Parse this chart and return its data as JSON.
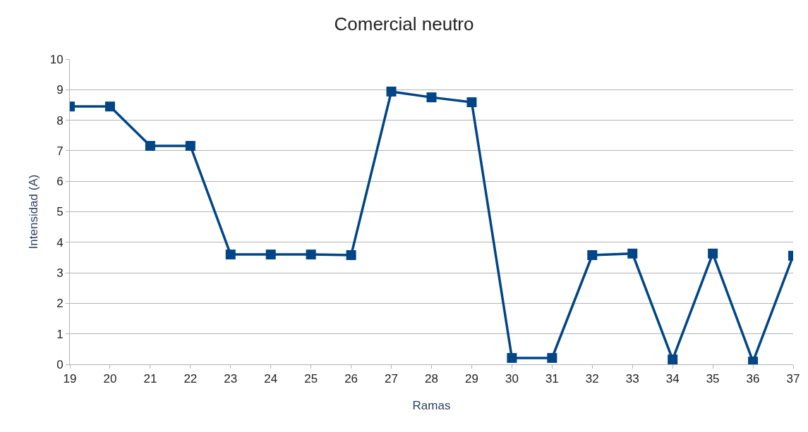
{
  "chart_data": {
    "type": "line",
    "title": "Comercial neutro",
    "xlabel": "Ramas",
    "ylabel": "Intensidad (A)",
    "x": [
      19,
      20,
      21,
      22,
      23,
      24,
      25,
      26,
      27,
      28,
      29,
      30,
      31,
      32,
      33,
      34,
      35,
      36,
      37
    ],
    "series": [
      {
        "color": "#004586",
        "values": [
          8.45,
          8.45,
          7.16,
          7.16,
          3.6,
          3.6,
          3.6,
          3.58,
          8.94,
          8.75,
          8.59,
          0.21,
          0.21,
          3.58,
          3.63,
          0.16,
          3.63,
          0.09,
          3.56
        ]
      }
    ],
    "xlim": [
      19,
      37
    ],
    "xticks": [
      19,
      20,
      21,
      22,
      23,
      24,
      25,
      26,
      27,
      28,
      29,
      30,
      31,
      32,
      33,
      34,
      35,
      36,
      37
    ],
    "ylim": [
      0,
      10
    ],
    "yticks": [
      0,
      1,
      2,
      3,
      4,
      5,
      6,
      7,
      8,
      9,
      10
    ],
    "grid": "y",
    "marker": "square",
    "line_style": "solid"
  }
}
